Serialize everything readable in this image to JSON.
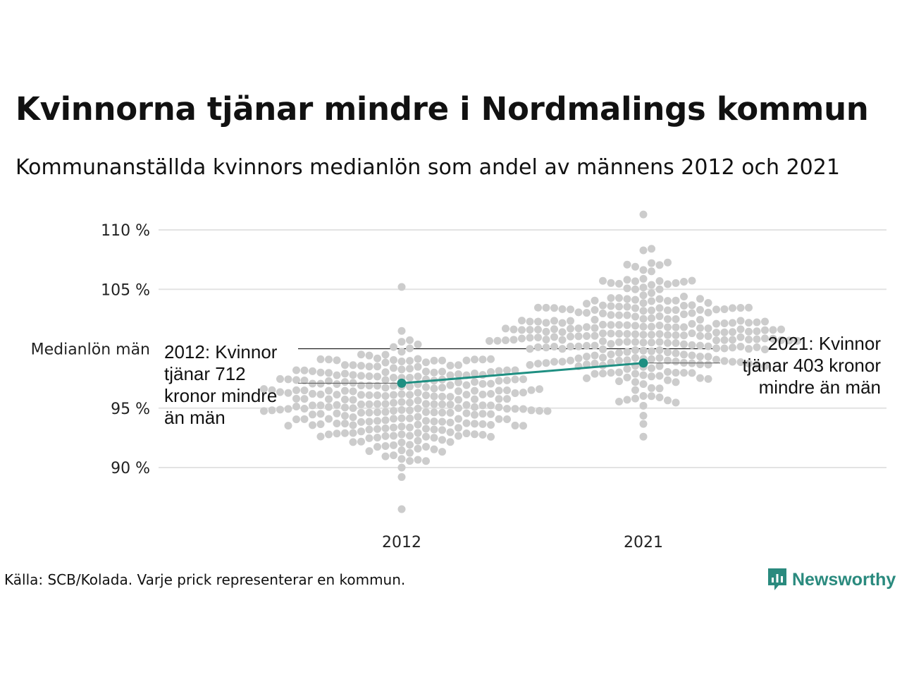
{
  "chart_data": {
    "type": "scatter",
    "title": "Kvinnorna tjänar mindre i Nordmalings kommun",
    "subtitle": "Kommunanställda kvinnors medianlön som andel av männens 2012 och 2021",
    "categories": [
      "2012",
      "2021"
    ],
    "y_ticks": [
      {
        "value": 110,
        "label": "110 %"
      },
      {
        "value": 105,
        "label": "105 %"
      },
      {
        "value": 95,
        "label": "95 %"
      },
      {
        "value": 90,
        "label": "90 %"
      }
    ],
    "reference_line": {
      "value": 100,
      "label": "Medianlön män"
    },
    "ylim": [
      85.5,
      111.5
    ],
    "grid": true,
    "highlight_series": {
      "values": [
        97.1,
        98.8
      ],
      "color": "#1f8f82"
    },
    "annotations": [
      {
        "year": "2012",
        "text": [
          "2012: Kvinnor",
          "tjänar 712",
          "kronor mindre",
          "än män"
        ]
      },
      {
        "year": "2021",
        "text": [
          "2021: Kvinnor",
          "tjänar 403 kronor",
          "mindre än män"
        ]
      }
    ],
    "distributions": [
      {
        "year": "2012",
        "count": 290,
        "mean": 95.5,
        "sd": 2.4,
        "min": 86.5,
        "max": 105.2
      },
      {
        "year": "2021",
        "count": 290,
        "mean": 101.2,
        "sd": 2.6,
        "min": 92.6,
        "max": 111.3
      }
    ],
    "dot_color": "#cccccc"
  },
  "source": "Källa: SCB/Kolada. Varje prick representerar en kommun.",
  "brand": "Newsworthy",
  "brand_color": "#2a8a7e"
}
